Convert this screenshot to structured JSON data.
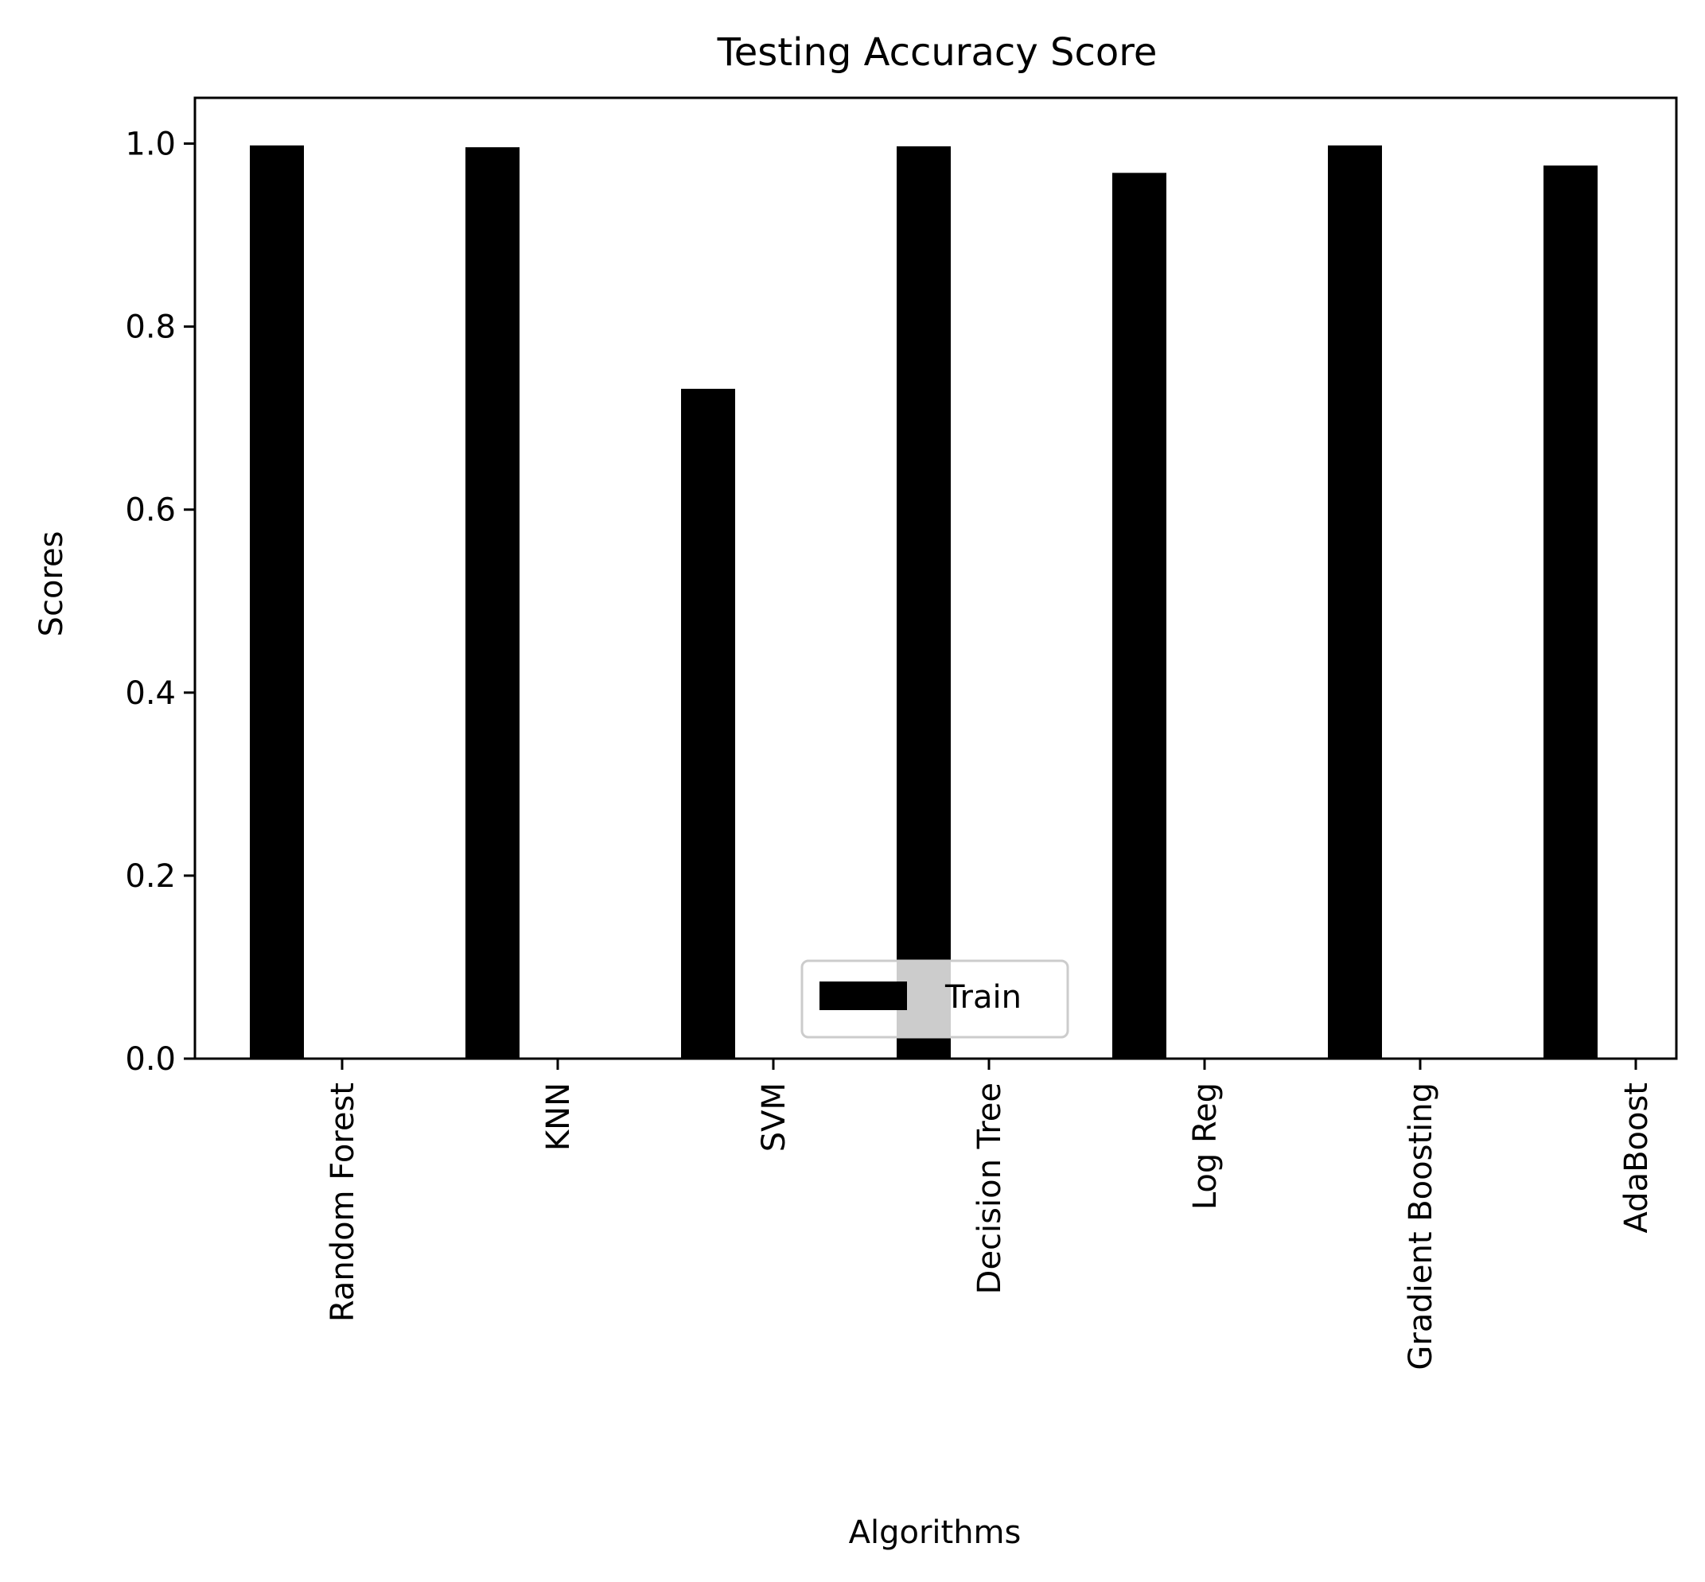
{
  "chart_data": {
    "type": "bar",
    "title": "Testing Accuracy Score",
    "xlabel": "Algorithms",
    "ylabel": "Scores",
    "categories": [
      "Random Forest",
      "KNN",
      "SVM",
      "Decision Tree",
      "Log Reg",
      "Gradient Boosting",
      "AdaBoost"
    ],
    "series": [
      {
        "name": "Train",
        "color": "#000000",
        "values": [
          0.998,
          0.996,
          0.732,
          0.997,
          0.968,
          0.998,
          0.976
        ]
      }
    ],
    "ylim": [
      0.0,
      1.05
    ],
    "yticks": [
      0.0,
      0.2,
      0.4,
      0.6,
      0.8,
      1.0
    ],
    "ytick_labels": [
      "0.0",
      "0.2",
      "0.4",
      "0.6",
      "0.8",
      "1.0"
    ],
    "legend": {
      "position": "lower center",
      "entries": [
        "Train"
      ]
    },
    "grid": false
  }
}
